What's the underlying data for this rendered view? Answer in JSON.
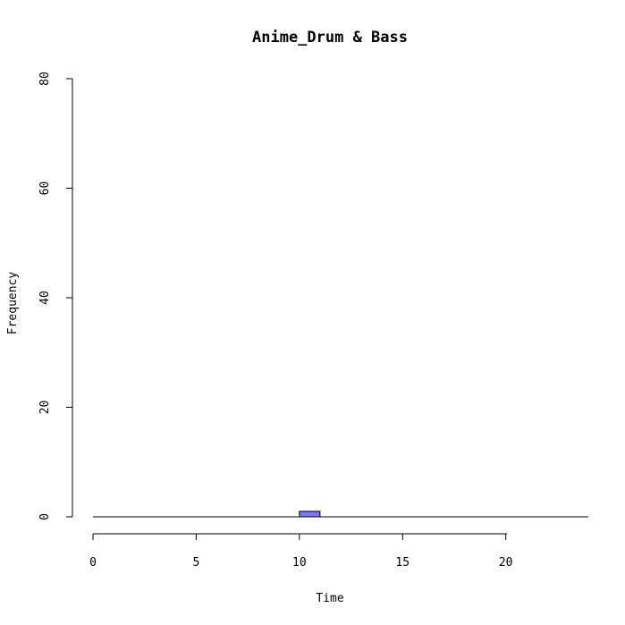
{
  "chart_data": {
    "type": "bar",
    "title": "Anime_Drum & Bass",
    "xlabel": "Time",
    "ylabel": "Frequency",
    "xlim": [
      0,
      24
    ],
    "ylim": [
      0,
      80
    ],
    "x_ticks": [
      0,
      5,
      10,
      15,
      20
    ],
    "y_ticks": [
      0,
      20,
      40,
      60,
      80
    ],
    "bins": [
      {
        "start": 10,
        "end": 11,
        "count": 1
      }
    ],
    "bar_color": "#7b7be8",
    "edge_color": "#000000",
    "grid": false
  }
}
